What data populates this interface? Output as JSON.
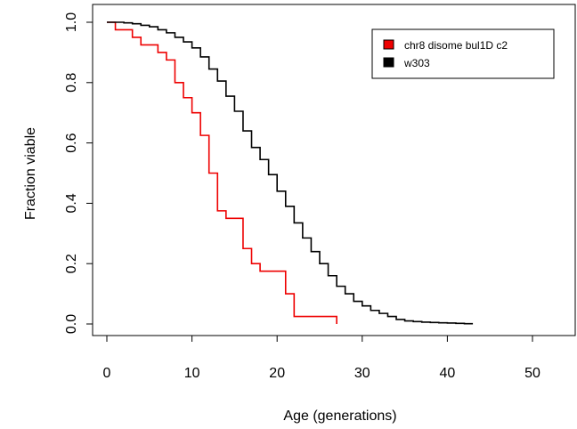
{
  "chart_data": {
    "type": "line",
    "title": "",
    "xlabel": "Age (generations)",
    "ylabel": "Fraction viable",
    "xlim": [
      0,
      55
    ],
    "ylim": [
      0,
      1.0
    ],
    "x_ticks": [
      0,
      10,
      20,
      30,
      40,
      50
    ],
    "x_tick_labels": [
      "0",
      "10",
      "20",
      "30",
      "40",
      "50"
    ],
    "y_ticks": [
      0.0,
      0.2,
      0.4,
      0.6,
      0.8,
      1.0
    ],
    "y_tick_labels": [
      "0.0",
      "0.2",
      "0.4",
      "0.6",
      "0.8",
      "1.0"
    ],
    "grid": false,
    "legend_position": "top-right",
    "step": true,
    "series": [
      {
        "name": "chr8 disome bul1D c2",
        "color": "#ee0000",
        "x": [
          0,
          1,
          3,
          4,
          6,
          7,
          8,
          9,
          10,
          11,
          12,
          13,
          14,
          16,
          17,
          18,
          21,
          22,
          27
        ],
        "y": [
          1.0,
          0.975,
          0.95,
          0.925,
          0.9,
          0.875,
          0.8,
          0.75,
          0.7,
          0.625,
          0.5,
          0.375,
          0.35,
          0.25,
          0.2,
          0.175,
          0.1,
          0.025,
          0.0
        ]
      },
      {
        "name": "w303",
        "color": "#000000",
        "x": [
          0,
          2,
          3,
          4,
          5,
          6,
          7,
          8,
          9,
          10,
          11,
          12,
          13,
          14,
          15,
          16,
          17,
          18,
          19,
          20,
          21,
          22,
          23,
          24,
          25,
          26,
          27,
          28,
          29,
          30,
          31,
          32,
          33,
          34,
          35,
          36,
          37,
          38,
          39,
          40,
          41,
          42,
          43
        ],
        "y": [
          1.0,
          0.998,
          0.995,
          0.99,
          0.985,
          0.975,
          0.965,
          0.95,
          0.935,
          0.915,
          0.885,
          0.845,
          0.805,
          0.755,
          0.705,
          0.64,
          0.585,
          0.545,
          0.495,
          0.44,
          0.39,
          0.335,
          0.285,
          0.24,
          0.2,
          0.16,
          0.125,
          0.1,
          0.075,
          0.06,
          0.045,
          0.035,
          0.025,
          0.015,
          0.01,
          0.008,
          0.006,
          0.005,
          0.004,
          0.003,
          0.002,
          0.001,
          0.001
        ]
      }
    ]
  }
}
